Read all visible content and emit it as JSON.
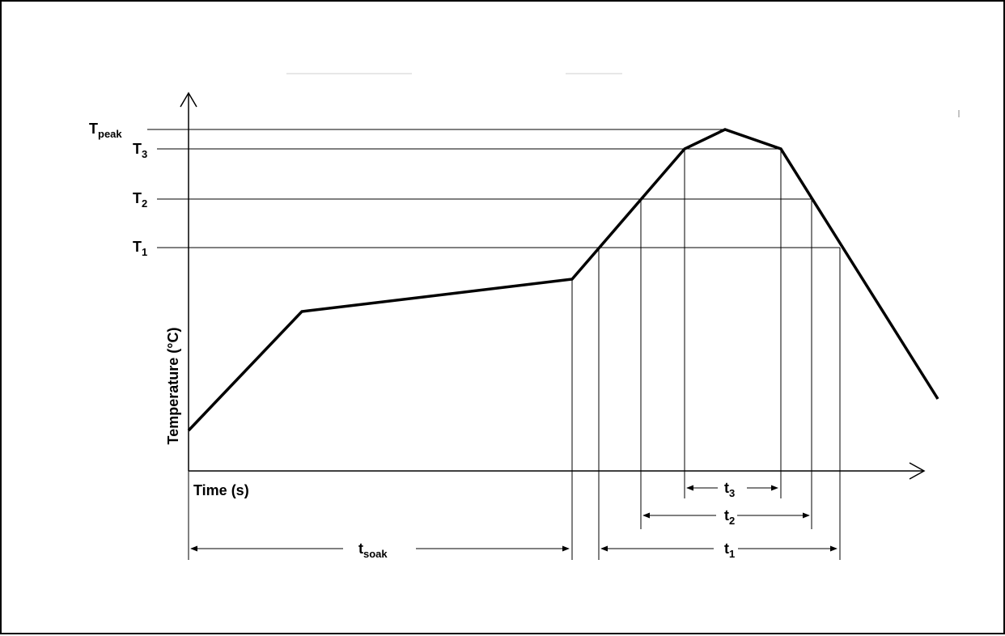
{
  "axes": {
    "y_label": "Temperature (°C)",
    "x_label": "Time (s)"
  },
  "temperature_levels": [
    {
      "base": "T",
      "sub": "peak"
    },
    {
      "base": "T",
      "sub": "3"
    },
    {
      "base": "T",
      "sub": "2"
    },
    {
      "base": "T",
      "sub": "1"
    }
  ],
  "time_intervals": [
    {
      "base": "t",
      "sub": "soak"
    },
    {
      "base": "t",
      "sub": "3"
    },
    {
      "base": "t",
      "sub": "2"
    },
    {
      "base": "t",
      "sub": "1"
    }
  ],
  "colors": {
    "line": "#000000",
    "background": "#ffffff"
  }
}
